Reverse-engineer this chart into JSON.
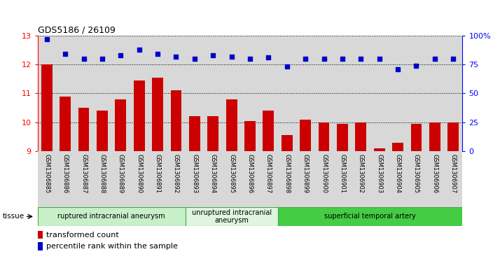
{
  "title": "GDS5186 / 26109",
  "samples": [
    "GSM1306885",
    "GSM1306886",
    "GSM1306887",
    "GSM1306888",
    "GSM1306889",
    "GSM1306890",
    "GSM1306891",
    "GSM1306892",
    "GSM1306893",
    "GSM1306894",
    "GSM1306895",
    "GSM1306896",
    "GSM1306897",
    "GSM1306898",
    "GSM1306899",
    "GSM1306900",
    "GSM1306901",
    "GSM1306902",
    "GSM1306903",
    "GSM1306904",
    "GSM1306905",
    "GSM1306906",
    "GSM1306907"
  ],
  "transformed_count": [
    12.0,
    10.9,
    10.5,
    10.4,
    10.8,
    11.45,
    11.55,
    11.1,
    10.2,
    10.2,
    10.8,
    10.05,
    10.4,
    9.55,
    10.1,
    10.0,
    9.95,
    10.0,
    9.1,
    9.3,
    9.95,
    10.0,
    10.0
  ],
  "percentile_rank": [
    97,
    84,
    80,
    80,
    83,
    88,
    84,
    82,
    80,
    83,
    82,
    80,
    81,
    73,
    80,
    80,
    80,
    80,
    80,
    71,
    74,
    80,
    80
  ],
  "groups": [
    {
      "label": "ruptured intracranial aneurysm",
      "start": 0,
      "end": 7,
      "color": "#c8f0c8"
    },
    {
      "label": "unruptured intracranial\naneurysm",
      "start": 8,
      "end": 12,
      "color": "#dff5df"
    },
    {
      "label": "superficial temporal artery",
      "start": 13,
      "end": 22,
      "color": "#44cc44"
    }
  ],
  "ylim_left": [
    9,
    13
  ],
  "ylim_right": [
    0,
    100
  ],
  "yticks_left": [
    9,
    10,
    11,
    12,
    13
  ],
  "yticks_right": [
    0,
    25,
    50,
    75,
    100
  ],
  "bar_color": "#cc0000",
  "dot_color": "#0000cc",
  "bar_bottom": 9,
  "plot_bg": "#d8d8d8"
}
